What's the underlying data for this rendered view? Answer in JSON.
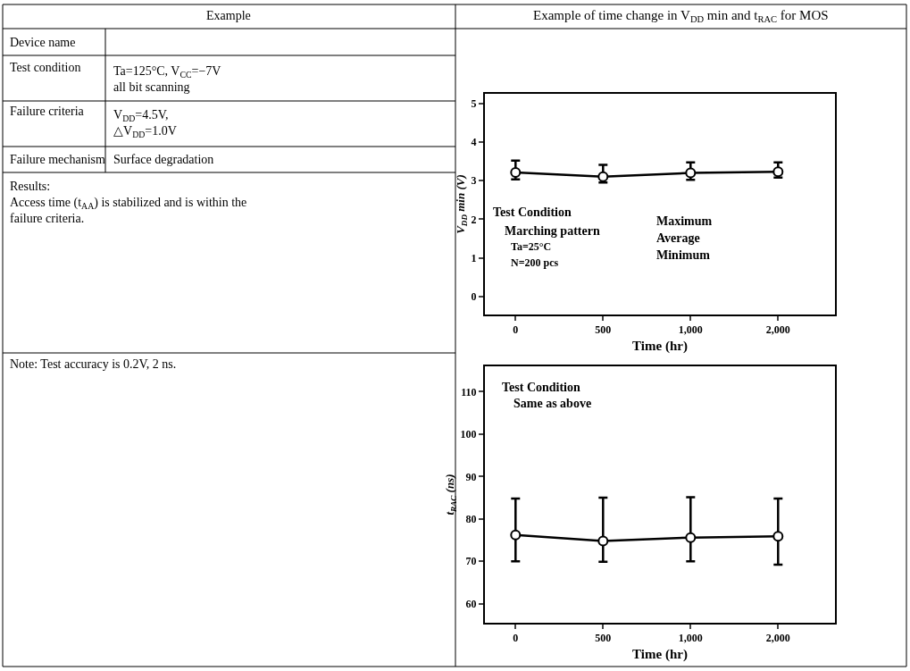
{
  "chart_data": [
    {
      "type": "other",
      "annotations": [
        "Example",
        "Device name",
        "Test condition",
        "Ta=125°C, V$_{CC}$=−7V\nall bit scanning",
        "Failure criteria",
        "V$_{DD}$=4.5V,\n△V$_{DD}$=1.0V",
        "Failure mechanism",
        "Surface degradation",
        "Results:\nAccess time (t$_{AA}$) is stabilized and is within the\nfailure criteria.",
        "Note: Test accuracy is 0.2V, 2 ns."
      ]
    },
    {
      "type": "line",
      "title": "Example of time change in V$_{DD}$ min and t$_{RAC}$ for MOS",
      "xlabel": "Time (hr)",
      "ylabel": "V$_{DD}$ min (V)",
      "categories": [
        "0",
        "500",
        "1,000",
        "2,000"
      ],
      "series": [
        {
          "color": "#000000",
          "values": [
            3.21,
            3.1,
            3.2,
            3.23
          ],
          "errors": [
            [
              3.03,
              3.52
            ],
            [
              2.95,
              3.41
            ],
            [
              3.02,
              3.47
            ],
            [
              3.08,
              3.47
            ]
          ]
        }
      ],
      "ylim": [
        -0.47,
        5.25
      ],
      "yticks": [
        0,
        1,
        2,
        3,
        4,
        5
      ],
      "marker": "circle",
      "annotations": [
        "Test Condition",
        "Marching pattern",
        "Ta=25°C",
        "N=200 pcs",
        "Maximum",
        "Average",
        "Minimum"
      ]
    },
    {
      "type": "line",
      "xlabel": "Time (hr)",
      "ylabel": "t$_{RAC}$ (ns)",
      "categories": [
        "0",
        "500",
        "1,000",
        "2,000"
      ],
      "series": [
        {
          "color": "#000000",
          "values": [
            76.2,
            74.8,
            75.6,
            75.9
          ],
          "errors": [
            [
              70,
              84.8
            ],
            [
              69.9,
              85
            ],
            [
              70,
              85.1
            ],
            [
              69.2,
              84.8
            ]
          ]
        }
      ],
      "ylim": [
        55.5,
        116
      ],
      "yticks": [
        60,
        70,
        80,
        90,
        100,
        110
      ],
      "marker": "circle",
      "annotations": [
        "Test Condition",
        "Same as above"
      ]
    }
  ]
}
